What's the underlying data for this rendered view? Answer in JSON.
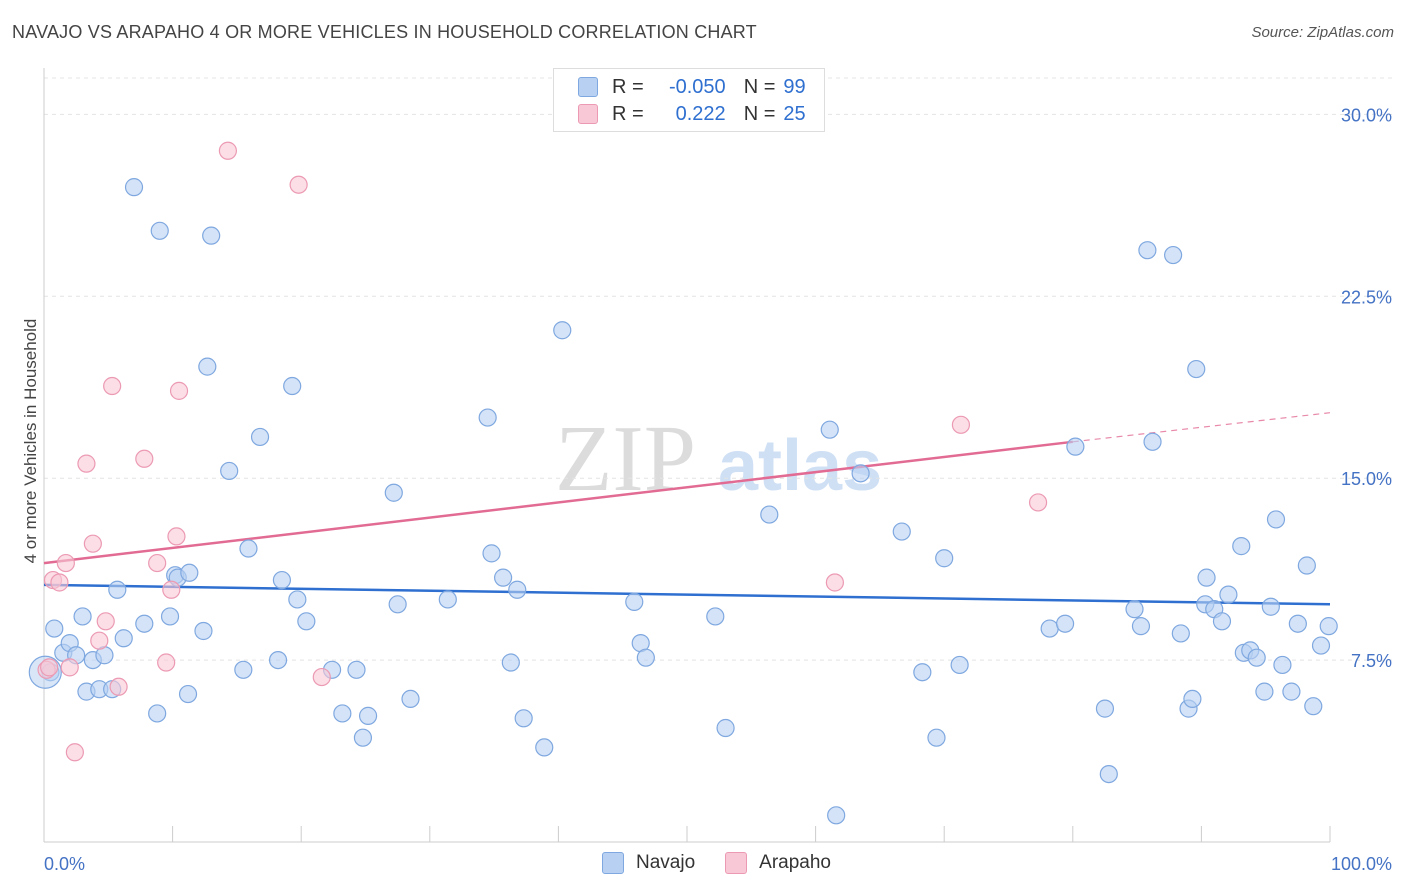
{
  "title": "NAVAJO VS ARAPAHO 4 OR MORE VEHICLES IN HOUSEHOLD CORRELATION CHART",
  "source": "Source: ZipAtlas.com",
  "watermark": {
    "zip": "ZIP",
    "atlas": "atlas"
  },
  "legend": {
    "r_label": "R =",
    "n_label": "N =",
    "navajo": {
      "r": "-0.050",
      "n": "99"
    },
    "arapaho": {
      "r": "0.222",
      "n": "25"
    }
  },
  "bottom_legend": {
    "navajo": "Navajo",
    "arapaho": "Arapaho"
  },
  "colors": {
    "navajo_fill": "#b8d1f2",
    "navajo_stroke": "#7fa8e0",
    "navajo_line": "#2e6fd0",
    "arapaho_fill": "#f8c8d6",
    "arapaho_stroke": "#ec9ab3",
    "arapaho_line": "#e26b93",
    "tick_text": "#4472c4"
  },
  "chart_data": {
    "type": "scatter",
    "title": "NAVAJO VS ARAPAHO 4 OR MORE VEHICLES IN HOUSEHOLD CORRELATION CHART",
    "xlabel": "",
    "ylabel": "4 or more Vehicles in Household",
    "xlim": [
      0,
      100
    ],
    "ylim": [
      0,
      31.5
    ],
    "x_tick_labels": [
      "0.0%",
      "100.0%"
    ],
    "y_ticks": [
      7.5,
      15.0,
      22.5,
      30.0
    ],
    "y_tick_labels": [
      "7.5%",
      "15.0%",
      "22.5%",
      "30.0%"
    ],
    "grid": true,
    "legend_placement": "top-center",
    "series": [
      {
        "name": "Navajo",
        "trend": {
          "x0": 0,
          "y0": 10.6,
          "x1": 100,
          "y1": 9.8
        },
        "points": [
          [
            0.5,
            7.0
          ],
          [
            0.8,
            8.8
          ],
          [
            1.5,
            7.8
          ],
          [
            2,
            8.2
          ],
          [
            2.5,
            7.7
          ],
          [
            3,
            9.3
          ],
          [
            3.3,
            6.2
          ],
          [
            3.8,
            7.5
          ],
          [
            4.3,
            6.3
          ],
          [
            4.7,
            7.7
          ],
          [
            5.3,
            6.3
          ],
          [
            5.7,
            10.4
          ],
          [
            6.2,
            8.4
          ],
          [
            7,
            27.0
          ],
          [
            7.8,
            9.0
          ],
          [
            8.8,
            5.3
          ],
          [
            9,
            25.2
          ],
          [
            9.8,
            9.3
          ],
          [
            10.2,
            11.0
          ],
          [
            10.4,
            10.9
          ],
          [
            11.3,
            11.1
          ],
          [
            11.2,
            6.1
          ],
          [
            12.4,
            8.7
          ],
          [
            12.7,
            19.6
          ],
          [
            13,
            25.0
          ],
          [
            14.4,
            15.3
          ],
          [
            15.5,
            7.1
          ],
          [
            15.9,
            12.1
          ],
          [
            16.8,
            16.7
          ],
          [
            18.2,
            7.5
          ],
          [
            18.5,
            10.8
          ],
          [
            19.3,
            18.8
          ],
          [
            19.7,
            10.0
          ],
          [
            20.4,
            9.1
          ],
          [
            22.4,
            7.1
          ],
          [
            23.2,
            5.3
          ],
          [
            24.3,
            7.1
          ],
          [
            24.8,
            4.3
          ],
          [
            25.2,
            5.2
          ],
          [
            27.2,
            14.4
          ],
          [
            27.5,
            9.8
          ],
          [
            28.5,
            5.9
          ],
          [
            31.4,
            10.0
          ],
          [
            34.5,
            17.5
          ],
          [
            34.8,
            11.9
          ],
          [
            35.7,
            10.9
          ],
          [
            36.3,
            7.4
          ],
          [
            36.8,
            10.4
          ],
          [
            37.3,
            5.1
          ],
          [
            38.9,
            3.9
          ],
          [
            40.3,
            21.1
          ],
          [
            45.9,
            9.9
          ],
          [
            46.4,
            8.2
          ],
          [
            46.8,
            7.6
          ],
          [
            52.2,
            9.3
          ],
          [
            53,
            4.7
          ],
          [
            56.4,
            13.5
          ],
          [
            61.1,
            17.0
          ],
          [
            61.6,
            1.1
          ],
          [
            63.5,
            15.2
          ],
          [
            66.7,
            12.8
          ],
          [
            68.3,
            7.0
          ],
          [
            69.4,
            4.3
          ],
          [
            70,
            11.7
          ],
          [
            71.2,
            7.3
          ],
          [
            78.2,
            8.8
          ],
          [
            79.4,
            9.0
          ],
          [
            80.2,
            16.3
          ],
          [
            82.5,
            5.5
          ],
          [
            82.8,
            2.8
          ],
          [
            84.8,
            9.6
          ],
          [
            85.3,
            8.9
          ],
          [
            85.8,
            24.4
          ],
          [
            86.2,
            16.5
          ],
          [
            87.8,
            24.2
          ],
          [
            88.4,
            8.6
          ],
          [
            89,
            5.5
          ],
          [
            89.3,
            5.9
          ],
          [
            89.6,
            19.5
          ],
          [
            90.3,
            9.8
          ],
          [
            90.4,
            10.9
          ],
          [
            91,
            9.6
          ],
          [
            91.6,
            9.1
          ],
          [
            92.1,
            10.2
          ],
          [
            93.1,
            12.2
          ],
          [
            93.3,
            7.8
          ],
          [
            93.8,
            7.9
          ],
          [
            94.3,
            7.6
          ],
          [
            94.9,
            6.2
          ],
          [
            95.4,
            9.7
          ],
          [
            95.8,
            13.3
          ],
          [
            96.3,
            7.3
          ],
          [
            97,
            6.2
          ],
          [
            97.5,
            9.0
          ],
          [
            98.2,
            11.4
          ],
          [
            98.7,
            5.6
          ],
          [
            99.3,
            8.1
          ],
          [
            99.9,
            8.9
          ],
          [
            0.1,
            7.0
          ]
        ]
      },
      {
        "name": "Arapaho",
        "trend": {
          "x0": 0,
          "y0": 11.5,
          "x1": 80,
          "y1": 16.5,
          "x2": 100,
          "y2": 17.7
        },
        "points": [
          [
            0.2,
            7.1
          ],
          [
            0.7,
            10.8
          ],
          [
            1.2,
            10.7
          ],
          [
            1.7,
            11.5
          ],
          [
            2,
            7.2
          ],
          [
            2.4,
            3.7
          ],
          [
            3.3,
            15.6
          ],
          [
            3.8,
            12.3
          ],
          [
            4.3,
            8.3
          ],
          [
            4.8,
            9.1
          ],
          [
            5.3,
            18.8
          ],
          [
            5.8,
            6.4
          ],
          [
            7.8,
            15.8
          ],
          [
            8.8,
            11.5
          ],
          [
            9.5,
            7.4
          ],
          [
            9.9,
            10.4
          ],
          [
            10.3,
            12.6
          ],
          [
            10.5,
            18.6
          ],
          [
            14.3,
            28.5
          ],
          [
            19.8,
            27.1
          ],
          [
            21.6,
            6.8
          ],
          [
            61.5,
            10.7
          ],
          [
            71.3,
            17.2
          ],
          [
            77.3,
            14.0
          ],
          [
            0.4,
            7.2
          ]
        ]
      }
    ]
  }
}
